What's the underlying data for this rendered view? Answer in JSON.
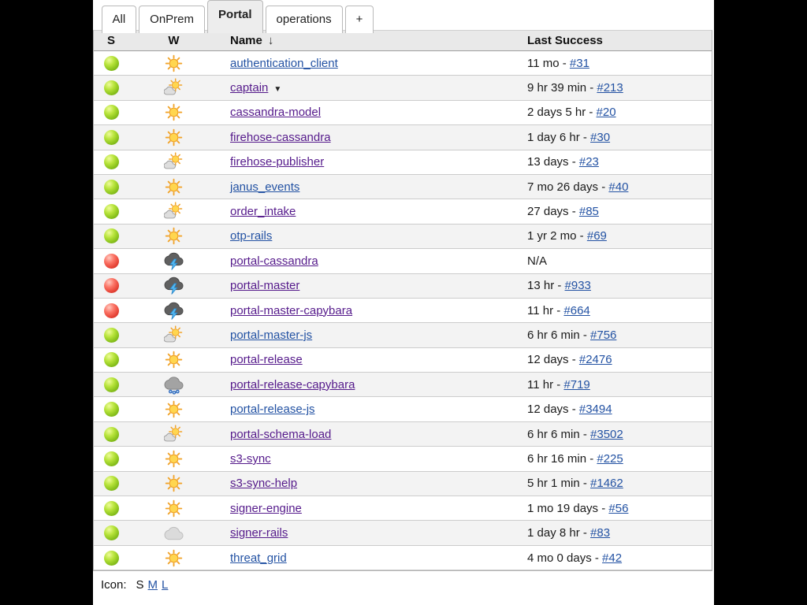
{
  "tabs": [
    {
      "label": "All",
      "active": false
    },
    {
      "label": "OnPrem",
      "active": false
    },
    {
      "label": "Portal",
      "active": true
    },
    {
      "label": "operations",
      "active": false
    },
    {
      "label": "+",
      "active": false
    }
  ],
  "table": {
    "headers": {
      "s": "S",
      "w": "W",
      "name": "Name",
      "sort_arrow": "↓",
      "last_success": "Last Success"
    },
    "separator": " - ",
    "menu_caret": "▼",
    "rows": [
      {
        "status": "green",
        "weather": "sun",
        "name": "authentication_client",
        "visited": false,
        "has_menu": false,
        "last": "11 mo",
        "build": "#31"
      },
      {
        "status": "green",
        "weather": "partly",
        "name": "captain",
        "visited": true,
        "has_menu": true,
        "last": "9 hr 39 min",
        "build": "#213"
      },
      {
        "status": "green",
        "weather": "sun",
        "name": "cassandra-model",
        "visited": true,
        "has_menu": false,
        "last": "2 days 5 hr",
        "build": "#20"
      },
      {
        "status": "green",
        "weather": "sun",
        "name": "firehose-cassandra",
        "visited": true,
        "has_menu": false,
        "last": "1 day 6 hr",
        "build": "#30"
      },
      {
        "status": "green",
        "weather": "partly",
        "name": "firehose-publisher",
        "visited": true,
        "has_menu": false,
        "last": "13 days",
        "build": "#23"
      },
      {
        "status": "green",
        "weather": "sun",
        "name": "janus_events",
        "visited": false,
        "has_menu": false,
        "last": "7 mo 26 days",
        "build": "#40"
      },
      {
        "status": "green",
        "weather": "partly",
        "name": "order_intake",
        "visited": true,
        "has_menu": false,
        "last": "27 days",
        "build": "#85"
      },
      {
        "status": "green",
        "weather": "sun",
        "name": "otp-rails",
        "visited": false,
        "has_menu": false,
        "last": "1 yr 2 mo",
        "build": "#69"
      },
      {
        "status": "red",
        "weather": "thunder",
        "name": "portal-cassandra",
        "visited": true,
        "has_menu": false,
        "last": "N/A",
        "build": null
      },
      {
        "status": "red",
        "weather": "thunder",
        "name": "portal-master",
        "visited": true,
        "has_menu": false,
        "last": "13 hr",
        "build": "#933"
      },
      {
        "status": "red",
        "weather": "thunder",
        "name": "portal-master-capybara",
        "visited": true,
        "has_menu": false,
        "last": "11 hr",
        "build": "#664"
      },
      {
        "status": "green",
        "weather": "partly",
        "name": "portal-master-js",
        "visited": false,
        "has_menu": false,
        "last": "6 hr 6 min",
        "build": "#756"
      },
      {
        "status": "green",
        "weather": "sun",
        "name": "portal-release",
        "visited": true,
        "has_menu": false,
        "last": "12 days",
        "build": "#2476"
      },
      {
        "status": "green",
        "weather": "rain",
        "name": "portal-release-capybara",
        "visited": true,
        "has_menu": false,
        "last": "11 hr",
        "build": "#719"
      },
      {
        "status": "green",
        "weather": "sun",
        "name": "portal-release-js",
        "visited": false,
        "has_menu": false,
        "last": "12 days",
        "build": "#3494"
      },
      {
        "status": "green",
        "weather": "partly",
        "name": "portal-schema-load",
        "visited": true,
        "has_menu": false,
        "last": "6 hr 6 min",
        "build": "#3502"
      },
      {
        "status": "green",
        "weather": "sun",
        "name": "s3-sync",
        "visited": true,
        "has_menu": false,
        "last": "6 hr 16 min",
        "build": "#225"
      },
      {
        "status": "green",
        "weather": "sun",
        "name": "s3-sync-help",
        "visited": true,
        "has_menu": false,
        "last": "5 hr 1 min",
        "build": "#1462"
      },
      {
        "status": "green",
        "weather": "sun",
        "name": "signer-engine",
        "visited": true,
        "has_menu": false,
        "last": "1 mo 19 days",
        "build": "#56"
      },
      {
        "status": "green",
        "weather": "cloudy",
        "name": "signer-rails",
        "visited": true,
        "has_menu": false,
        "last": "1 day 8 hr",
        "build": "#83"
      },
      {
        "status": "green",
        "weather": "sun",
        "name": "threat_grid",
        "visited": false,
        "has_menu": false,
        "last": "4 mo 0 days",
        "build": "#42"
      }
    ]
  },
  "footer": {
    "label": "Icon:",
    "sizes": [
      {
        "label": "S",
        "link": false
      },
      {
        "label": "M",
        "link": true
      },
      {
        "label": "L",
        "link": true
      }
    ]
  },
  "colors": {
    "link_blue": "#2352a3",
    "visited_purple": "#551a8b",
    "status_green": "#8cc41e",
    "status_red": "#e8473a",
    "header_bg": "#e9e9e9",
    "alt_row_bg": "#f3f3f3",
    "page_bg": "#000000"
  }
}
